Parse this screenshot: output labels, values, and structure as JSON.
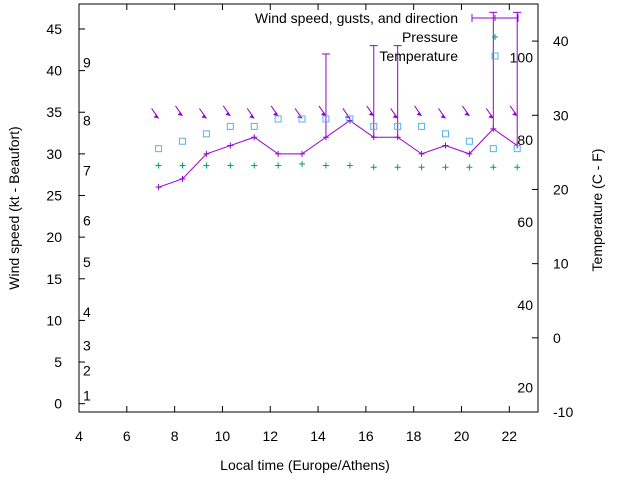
{
  "chart_data": {
    "type": "line",
    "xlabel": "Local time (Europe/Athens)",
    "ylabel_left": "Wind speed (kt - Beaufort)",
    "ylabel_right": "Temperature (C - F)",
    "xlim": [
      4,
      23.2
    ],
    "ylim_left": [
      -1,
      48
    ],
    "ylim_right": [
      -10,
      45
    ],
    "x_ticks": [
      4,
      6,
      8,
      10,
      12,
      14,
      16,
      18,
      20,
      22
    ],
    "y_left_ticks": [
      0,
      5,
      10,
      15,
      20,
      25,
      30,
      35,
      40,
      45
    ],
    "y_right_ticks": [
      -10,
      0,
      10,
      20,
      30,
      40
    ],
    "beaufort_labels": [
      {
        "label": "1",
        "kt": 1
      },
      {
        "label": "2",
        "kt": 4
      },
      {
        "label": "3",
        "kt": 7
      },
      {
        "label": "4",
        "kt": 11
      },
      {
        "label": "5",
        "kt": 17
      },
      {
        "label": "6",
        "kt": 22
      },
      {
        "label": "7",
        "kt": 28
      },
      {
        "label": "8",
        "kt": 34
      },
      {
        "label": "9",
        "kt": 41
      }
    ],
    "fahrenheit_labels": [
      {
        "label": "20",
        "c": -6.7
      },
      {
        "label": "40",
        "c": 4.4
      },
      {
        "label": "60",
        "c": 15.6
      },
      {
        "label": "80",
        "c": 26.7
      },
      {
        "label": "100",
        "c": 37.8
      }
    ],
    "legend": [
      {
        "label": "Wind speed, gusts, and direction",
        "color": "#9400d3"
      },
      {
        "label": "Pressure",
        "color": "#009e73"
      },
      {
        "label": "Temperature",
        "color": "#56b4e9"
      }
    ],
    "series": [
      {
        "name": "Wind speed, gusts, and direction",
        "color": "#9400d3",
        "x": [
          7.33,
          8.33,
          9.33,
          10.33,
          11.33,
          12.33,
          13.33,
          14.33,
          15.33,
          16.33,
          17.33,
          18.33,
          19.33,
          20.33,
          21.33,
          22.33
        ],
        "values": [
          26,
          27,
          30,
          31,
          32,
          30,
          30,
          32,
          34,
          32,
          32,
          30,
          31,
          30,
          33,
          31
        ],
        "gusts": [
          26,
          27,
          30,
          31,
          32,
          30,
          30,
          42,
          34,
          43,
          43,
          30,
          31,
          30,
          47,
          47
        ]
      },
      {
        "name": "Pressure",
        "color": "#009e73",
        "x": [
          7.33,
          8.33,
          9.33,
          10.33,
          11.33,
          12.33,
          13.33,
          14.33,
          15.33,
          16.33,
          17.33,
          18.33,
          19.33,
          20.33,
          21.33,
          22.33
        ],
        "values": [
          28.6,
          28.6,
          28.6,
          28.6,
          28.6,
          28.6,
          28.8,
          28.6,
          28.6,
          28.4,
          28.4,
          28.4,
          28.4,
          28.4,
          28.4,
          28.4
        ]
      },
      {
        "name": "Temperature",
        "color": "#56b4e9",
        "axis": "right",
        "x": [
          7.33,
          8.33,
          9.33,
          10.33,
          11.33,
          12.33,
          13.33,
          14.33,
          15.33,
          16.33,
          17.33,
          18.33,
          19.33,
          20.33,
          21.33,
          22.33
        ],
        "values": [
          25.5,
          26.5,
          27.5,
          28.5,
          28.5,
          29.5,
          29.5,
          29.5,
          29.5,
          28.5,
          28.5,
          28.5,
          27.5,
          26.5,
          25.5,
          25.5
        ]
      }
    ]
  }
}
